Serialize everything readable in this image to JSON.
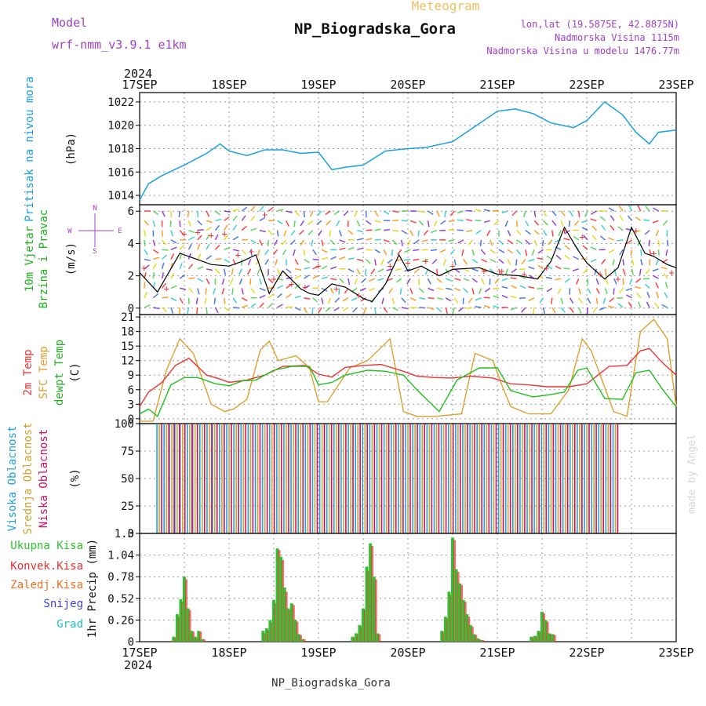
{
  "header": {
    "meteogram": "Meteogram",
    "model_label": "Model",
    "model_name": "wrf-nmm_v3.9.1 e1km",
    "station": "NP_Biogradska_Gora",
    "lonlat": "lon,lat (19.5875E, 42.8875N)",
    "elevation": "Nadmorska Visina 1115m",
    "model_elevation": "Nadmorska Visina u modelu 1476.77m",
    "year": "2024",
    "footer": "NP_Biogradska_Gora",
    "credit": "made by Angel"
  },
  "colors": {
    "pressure": "#1aa0e0",
    "t2m": "#ee3333",
    "sfc": "#e0a030",
    "dew": "#20c020",
    "cloud_high": "#20a0e0",
    "cloud_mid": "#d4a030",
    "cloud_low": "#cc1060",
    "rain_total": "#30c030",
    "rain_conv": "#ee3030",
    "purple": "#a040c8",
    "wind_speed": "#000000",
    "gust": "#ee3333"
  },
  "date_labels": [
    "17SEP",
    "18SEP",
    "19SEP",
    "20SEP",
    "21SEP",
    "22SEP",
    "23SEP"
  ],
  "chart_data": [
    {
      "type": "line",
      "panel": "pressure",
      "ylabel_outer": "Pritisak na nivou mora",
      "ylabel_inner": "(hPa)",
      "yticks": [
        "1014",
        "1016",
        "1018",
        "1020",
        "1022"
      ],
      "ylim": [
        1013.2,
        1022.8
      ],
      "xlim_days": [
        0,
        6
      ],
      "x_days": [
        0,
        0.1,
        0.25,
        0.5,
        0.75,
        0.9,
        1.0,
        1.2,
        1.4,
        1.6,
        1.8,
        2.0,
        2.15,
        2.3,
        2.5,
        2.75,
        3.0,
        3.2,
        3.5,
        3.75,
        4.0,
        4.2,
        4.4,
        4.6,
        4.85,
        5.0,
        5.2,
        5.4,
        5.55,
        5.7,
        5.8,
        6.0
      ],
      "values": [
        1013.6,
        1015.0,
        1015.7,
        1016.6,
        1017.6,
        1018.4,
        1017.8,
        1017.4,
        1017.9,
        1017.9,
        1017.6,
        1017.7,
        1016.2,
        1016.4,
        1016.6,
        1017.8,
        1018.0,
        1018.1,
        1018.6,
        1019.9,
        1021.2,
        1021.4,
        1021.0,
        1020.2,
        1019.8,
        1020.4,
        1022.0,
        1020.9,
        1019.4,
        1018.4,
        1019.4,
        1019.6
      ]
    },
    {
      "type": "line",
      "panel": "wind",
      "ylabel_outer": "10m Vjetar Brzina i Pravac",
      "ylabel_inner": "(m/s)",
      "compass": [
        "N",
        "E",
        "S",
        "W"
      ],
      "yticks": [
        "0",
        "2",
        "4",
        "6"
      ],
      "ylim": [
        -0.4,
        6.4
      ],
      "series": [
        {
          "name": "speed",
          "x_days": [
            0,
            0.2,
            0.45,
            0.6,
            0.8,
            1.0,
            1.15,
            1.3,
            1.45,
            1.6,
            1.8,
            1.9,
            2.0,
            2.15,
            2.3,
            2.5,
            2.6,
            2.75,
            2.9,
            3.0,
            3.15,
            3.35,
            3.5,
            3.8,
            4.0,
            4.25,
            4.45,
            4.6,
            4.75,
            4.9,
            5.0,
            5.2,
            5.35,
            5.5,
            5.65,
            5.75,
            5.9,
            6.0
          ],
          "values": [
            2.2,
            1.0,
            3.4,
            3.1,
            2.7,
            2.6,
            2.9,
            3.3,
            0.9,
            2.3,
            1.2,
            0.9,
            0.8,
            1.5,
            1.3,
            0.6,
            0.4,
            1.5,
            3.3,
            2.3,
            2.6,
            2.0,
            2.4,
            2.5,
            2.1,
            2.0,
            1.8,
            2.9,
            5.0,
            3.6,
            2.8,
            1.8,
            2.5,
            5.0,
            3.4,
            3.2,
            2.7,
            2.5
          ]
        },
        {
          "name": "gust",
          "x_days": [
            0.05,
            0.3,
            0.5,
            0.65,
            0.8,
            0.95,
            1.1,
            1.25,
            1.4,
            1.5,
            1.7,
            1.85,
            2.0,
            2.2,
            2.45,
            2.8,
            3.0,
            3.2,
            3.5,
            3.85,
            4.05,
            4.3,
            4.55,
            4.75,
            4.95,
            5.15,
            5.35,
            5.55,
            5.75,
            5.95
          ],
          "values": [
            2.5,
            1.2,
            4.6,
            4.7,
            4.5,
            4.6,
            3.3,
            3.5,
            5.8,
            1.8,
            1.5,
            1.3,
            2.6,
            1.2,
            0.8,
            2.6,
            2.8,
            2.9,
            2.6,
            2.3,
            2.3,
            2.1,
            2.5,
            4.8,
            4.4,
            2.1,
            1.8,
            4.8,
            3.4,
            2.2
          ]
        }
      ]
    },
    {
      "type": "line",
      "panel": "temperature",
      "ylabel_outer": [
        "2m Temp",
        "SFC Temp",
        "dewpt Temp"
      ],
      "ylabel_inner": "(C)",
      "yticks": [
        "0",
        "3",
        "6",
        "9",
        "12",
        "15",
        "18",
        "21"
      ],
      "ylim": [
        -1,
        21.5
      ],
      "series": [
        {
          "name": "2m Temp",
          "x_days": [
            0,
            0.1,
            0.25,
            0.4,
            0.55,
            0.75,
            0.9,
            1.0,
            1.2,
            1.4,
            1.6,
            1.85,
            2.0,
            2.15,
            2.3,
            2.5,
            2.7,
            2.95,
            3.1,
            3.3,
            3.5,
            3.7,
            3.95,
            4.15,
            4.35,
            4.55,
            4.8,
            5.0,
            5.25,
            5.45,
            5.6,
            5.7,
            5.85,
            6.0
          ],
          "values": [
            2.5,
            5.5,
            7.5,
            11.0,
            12.5,
            9.0,
            8.2,
            7.5,
            8.0,
            9.0,
            10.8,
            11.0,
            9.2,
            8.6,
            10.6,
            11.0,
            11.2,
            9.8,
            8.8,
            8.5,
            8.4,
            8.8,
            8.4,
            7.2,
            7.0,
            6.6,
            6.6,
            7.2,
            10.8,
            11.0,
            14.0,
            14.5,
            11.5,
            9.0
          ]
        },
        {
          "name": "SFC Temp",
          "x_days": [
            0,
            0.15,
            0.3,
            0.45,
            0.6,
            0.8,
            0.95,
            1.05,
            1.2,
            1.35,
            1.45,
            1.55,
            1.75,
            1.9,
            2.0,
            2.1,
            2.35,
            2.55,
            2.8,
            2.95,
            3.1,
            3.3,
            3.6,
            3.75,
            3.95,
            4.05,
            4.15,
            4.35,
            4.6,
            4.8,
            4.95,
            5.05,
            5.3,
            5.45,
            5.6,
            5.75,
            5.9,
            6.0
          ],
          "values": [
            -0.5,
            -0.5,
            10.0,
            16.5,
            13.5,
            3.0,
            1.5,
            2.0,
            4.0,
            14.2,
            16.0,
            12.0,
            13.0,
            10.5,
            3.5,
            3.5,
            10.5,
            12.0,
            16.5,
            1.5,
            0.5,
            0.5,
            1.0,
            13.5,
            12.0,
            7.0,
            2.5,
            1.0,
            1.0,
            6.0,
            16.5,
            14.0,
            1.5,
            0.5,
            18.0,
            20.5,
            16.5,
            2.5
          ]
        },
        {
          "name": "dewpt Temp",
          "x_days": [
            0,
            0.1,
            0.2,
            0.35,
            0.5,
            0.65,
            0.85,
            1.0,
            1.15,
            1.3,
            1.5,
            1.7,
            1.9,
            2.0,
            2.15,
            2.3,
            2.55,
            2.75,
            2.95,
            3.1,
            3.35,
            3.55,
            3.8,
            4.0,
            4.15,
            4.4,
            4.6,
            4.75,
            4.9,
            5.0,
            5.2,
            5.4,
            5.55,
            5.7,
            5.85,
            6.0
          ],
          "values": [
            1.0,
            2.0,
            0.5,
            7.0,
            8.5,
            8.5,
            7.2,
            6.8,
            7.8,
            8.0,
            10.0,
            10.8,
            10.8,
            7.0,
            7.5,
            9.0,
            10.0,
            9.8,
            9.0,
            6.0,
            1.5,
            8.0,
            10.5,
            10.5,
            5.8,
            4.5,
            5.0,
            5.5,
            10.0,
            10.5,
            4.2,
            4.0,
            9.5,
            10.0,
            6.0,
            2.5
          ]
        }
      ]
    },
    {
      "type": "bar",
      "panel": "clouds",
      "ylabel_outer": [
        "Visoka Oblacnost",
        "Srednja Oblacnost",
        "Niska Oblacnost"
      ],
      "ylabel_inner": "(%)",
      "yticks": [
        "0",
        "25",
        "50",
        "75",
        "100"
      ],
      "ylim": [
        0,
        100
      ],
      "x_days": [
        0.22,
        0.3,
        0.36,
        0.42,
        0.48,
        0.56,
        0.62,
        0.7,
        0.78,
        0.84,
        0.92,
        1.0,
        1.08,
        1.16,
        1.24,
        1.32,
        1.4,
        1.48,
        1.56,
        1.64,
        1.72,
        1.8,
        1.88,
        1.96,
        2.04,
        2.12,
        2.2,
        2.28,
        2.36,
        2.44,
        2.52,
        2.6,
        2.68,
        2.76,
        2.84,
        2.92,
        3.0,
        3.08,
        3.16,
        3.24,
        3.32,
        3.4,
        3.48,
        3.56,
        3.64,
        3.72,
        3.8,
        3.88,
        3.96,
        4.04,
        4.12,
        4.2,
        4.28,
        4.36,
        4.44,
        4.52,
        4.6,
        4.68,
        4.76,
        4.84,
        4.92,
        5.0,
        5.08,
        5.16,
        5.24,
        5.32
      ],
      "series": [
        {
          "name": "Visoka Oblacnost",
          "values": [
            100,
            100,
            100,
            100,
            100,
            100,
            100,
            100,
            100,
            100,
            100,
            100,
            100,
            100,
            100,
            100,
            100,
            100,
            100,
            100,
            100,
            100,
            100,
            100,
            100,
            100,
            100,
            100,
            100,
            100,
            100,
            100,
            100,
            100,
            100,
            100,
            100,
            100,
            100,
            100,
            100,
            100,
            100,
            100,
            100,
            100,
            100,
            100,
            100,
            100,
            100,
            100,
            100,
            100,
            100,
            100,
            100,
            100,
            100,
            100,
            100,
            100,
            100,
            100,
            100,
            100
          ]
        },
        {
          "name": "Srednja Oblacnost",
          "values": [
            100,
            100,
            100,
            100,
            100,
            100,
            100,
            100,
            100,
            100,
            100,
            100,
            100,
            100,
            100,
            100,
            100,
            100,
            100,
            100,
            100,
            100,
            100,
            100,
            100,
            100,
            100,
            100,
            100,
            100,
            100,
            100,
            100,
            100,
            100,
            100,
            100,
            100,
            100,
            100,
            100,
            100,
            100,
            100,
            100,
            100,
            100,
            100,
            100,
            100,
            100,
            100,
            100,
            100,
            100,
            100,
            100,
            100,
            100,
            100,
            100,
            100,
            100,
            100,
            100,
            100
          ]
        },
        {
          "name": "Niska Oblacnost",
          "values": [
            100,
            100,
            100,
            100,
            100,
            100,
            100,
            100,
            100,
            100,
            100,
            100,
            100,
            100,
            100,
            100,
            100,
            100,
            100,
            100,
            100,
            100,
            100,
            100,
            100,
            100,
            100,
            100,
            100,
            100,
            100,
            100,
            100,
            100,
            100,
            100,
            100,
            100,
            100,
            100,
            100,
            100,
            100,
            100,
            100,
            100,
            100,
            100,
            100,
            100,
            100,
            100,
            100,
            100,
            100,
            100,
            100,
            100,
            100,
            100,
            100,
            100,
            100,
            100,
            100,
            100
          ]
        }
      ]
    },
    {
      "type": "bar",
      "panel": "precip",
      "ylabel_outer": [
        "Ukupna Kisa",
        "Konvek.Kisa",
        "Zaledj.Kisa",
        "Snijeg",
        "Grad"
      ],
      "ylabel_inner": "1hr Precip (mm)",
      "yticks": [
        "0",
        "0.26",
        "0.52",
        "0.78",
        "1.04",
        "1.3"
      ],
      "ylim": [
        0,
        1.3
      ],
      "x_days": [
        0.38,
        0.42,
        0.46,
        0.5,
        0.54,
        0.58,
        0.62,
        0.66,
        0.7,
        1.38,
        1.42,
        1.46,
        1.5,
        1.54,
        1.58,
        1.62,
        1.66,
        1.7,
        1.74,
        1.78,
        1.82,
        2.38,
        2.42,
        2.46,
        2.5,
        2.54,
        2.58,
        2.62,
        2.66,
        3.38,
        3.42,
        3.46,
        3.5,
        3.54,
        3.58,
        3.62,
        3.66,
        3.7,
        3.74,
        3.78,
        3.82,
        4.38,
        4.42,
        4.46,
        4.5,
        4.54,
        4.58,
        4.62
      ],
      "series": [
        {
          "name": "Ukupna Kisa",
          "values": [
            0.06,
            0.33,
            0.51,
            0.78,
            0.4,
            0.13,
            0.06,
            0.13,
            0.03,
            0.13,
            0.16,
            0.26,
            0.5,
            1.12,
            1.02,
            0.65,
            0.4,
            0.46,
            0.26,
            0.09,
            0.03,
            0.06,
            0.1,
            0.2,
            0.4,
            0.9,
            1.18,
            0.78,
            0.1,
            0.13,
            0.3,
            0.6,
            1.25,
            0.87,
            0.7,
            0.5,
            0.33,
            0.2,
            0.09,
            0.04,
            0.02,
            0.06,
            0.07,
            0.13,
            0.36,
            0.26,
            0.1,
            0.09
          ]
        },
        {
          "name": "Konvek.Kisa",
          "values": [
            0.05,
            0.3,
            0.48,
            0.75,
            0.38,
            0.12,
            0.05,
            0.12,
            0.03,
            0.1,
            0.14,
            0.23,
            0.46,
            1.1,
            0.98,
            0.6,
            0.38,
            0.44,
            0.24,
            0.08,
            0.03,
            0.05,
            0.09,
            0.18,
            0.38,
            0.85,
            1.15,
            0.75,
            0.09,
            0.12,
            0.28,
            0.56,
            1.22,
            0.84,
            0.68,
            0.48,
            0.3,
            0.18,
            0.08,
            0.03,
            0.02,
            0.05,
            0.06,
            0.12,
            0.34,
            0.24,
            0.09,
            0.08
          ]
        }
      ]
    }
  ]
}
